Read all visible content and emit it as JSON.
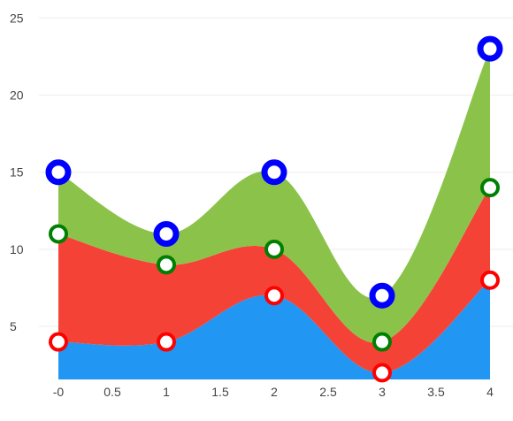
{
  "chart_data": {
    "type": "area",
    "stacked": true,
    "smooth": true,
    "x": [
      0,
      1,
      2,
      3,
      4
    ],
    "series": [
      {
        "values": [
          4,
          4,
          7,
          2,
          8
        ],
        "fill": "#2196F3",
        "marker_stroke": "#FF0000",
        "cumulative": [
          4,
          4,
          7,
          2,
          8
        ]
      },
      {
        "values": [
          7,
          5,
          3,
          2,
          6
        ],
        "fill": "#F44336",
        "marker_stroke": "#008000",
        "cumulative": [
          11,
          9,
          10,
          4,
          14
        ]
      },
      {
        "values": [
          4,
          2,
          5,
          3,
          9
        ],
        "fill": "#8BC34A",
        "marker_stroke": "#0000FF",
        "cumulative": [
          15,
          11,
          15,
          7,
          23
        ]
      }
    ],
    "xlim": [
      0,
      4
    ],
    "ylim": [
      1.5,
      25
    ],
    "x_ticks": [
      0,
      0.5,
      1,
      1.5,
      2,
      2.5,
      3,
      3.5,
      4
    ],
    "x_tick_labels": [
      "-0",
      "0.5",
      "1",
      "1.5",
      "2",
      "2.5",
      "3",
      "3.5",
      "4"
    ],
    "y_ticks": [
      5,
      10,
      15,
      20,
      25
    ],
    "y_tick_labels": [
      "5",
      "10",
      "15",
      "20",
      "25"
    ],
    "grid": "horizontal",
    "gridline_color": "#EEEEEE",
    "marker_fill": "#FFFFFF",
    "title": "",
    "xlabel": "",
    "ylabel": ""
  }
}
